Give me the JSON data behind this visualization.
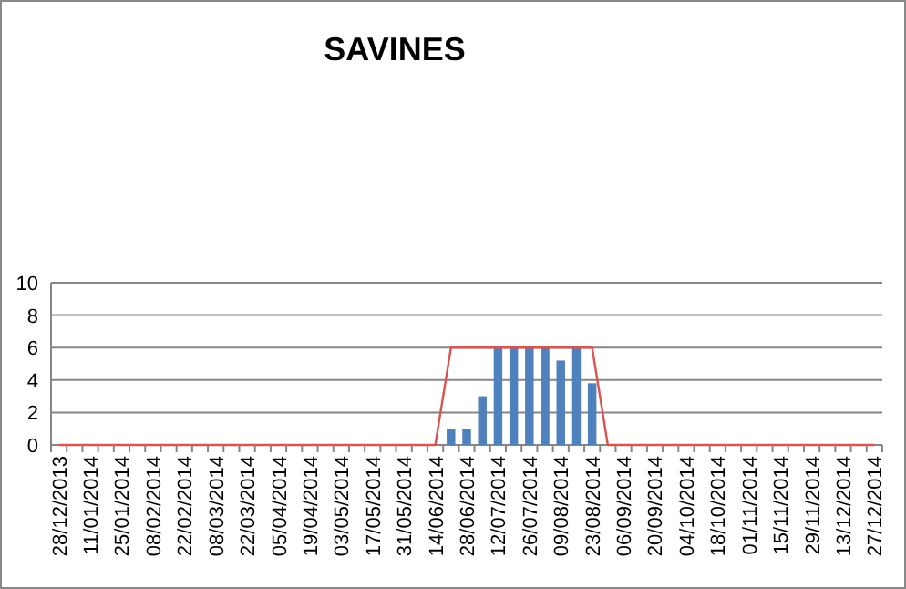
{
  "chart_data": {
    "type": "bar",
    "title": "SAVINES",
    "categories": [
      "28/12/2013",
      null,
      "11/01/2014",
      null,
      "25/01/2014",
      null,
      "08/02/2014",
      null,
      "22/02/2014",
      null,
      "08/03/2014",
      null,
      "22/03/2014",
      null,
      "05/04/2014",
      null,
      "19/04/2014",
      null,
      "03/05/2014",
      null,
      "17/05/2014",
      null,
      "31/05/2014",
      null,
      "14/06/2014",
      null,
      "28/06/2014",
      null,
      "12/07/2014",
      null,
      "26/07/2014",
      null,
      "09/08/2014",
      null,
      "23/08/2014",
      null,
      "06/09/2014",
      null,
      "20/09/2014",
      null,
      "04/10/2014",
      null,
      "18/10/2014",
      null,
      "01/11/2014",
      null,
      "15/11/2014",
      null,
      "29/11/2014",
      null,
      "13/12/2014",
      null,
      "27/12/2014"
    ],
    "series": [
      {
        "color": "#4f81bd",
        "values": [
          0,
          0,
          0,
          0,
          0,
          0,
          0,
          0,
          0,
          0,
          0,
          0,
          0,
          0,
          0,
          0,
          0,
          0,
          0,
          0,
          0,
          0,
          0,
          0,
          0,
          1,
          1,
          3,
          6,
          6,
          6,
          6,
          5.2,
          6,
          3.8,
          0,
          0,
          0,
          0,
          0,
          0,
          0,
          0,
          0,
          0,
          0,
          0,
          0,
          0,
          0,
          0,
          0,
          0
        ]
      },
      {
        "type": "line",
        "color": "#d9534f",
        "values": [
          0,
          0,
          0,
          0,
          0,
          0,
          0,
          0,
          0,
          0,
          0,
          0,
          0,
          0,
          0,
          0,
          0,
          0,
          0,
          0,
          0,
          0,
          0,
          0,
          0,
          6,
          6,
          6,
          6,
          6,
          6,
          6,
          6,
          6,
          6,
          0,
          0,
          0,
          0,
          0,
          0,
          0,
          0,
          0,
          0,
          0,
          0,
          0,
          0,
          0,
          0,
          0,
          0
        ]
      }
    ],
    "ylim": [
      0,
      10
    ],
    "yticks": [
      0,
      2,
      4,
      6,
      8,
      10
    ],
    "grid": "y",
    "marker": "none"
  }
}
